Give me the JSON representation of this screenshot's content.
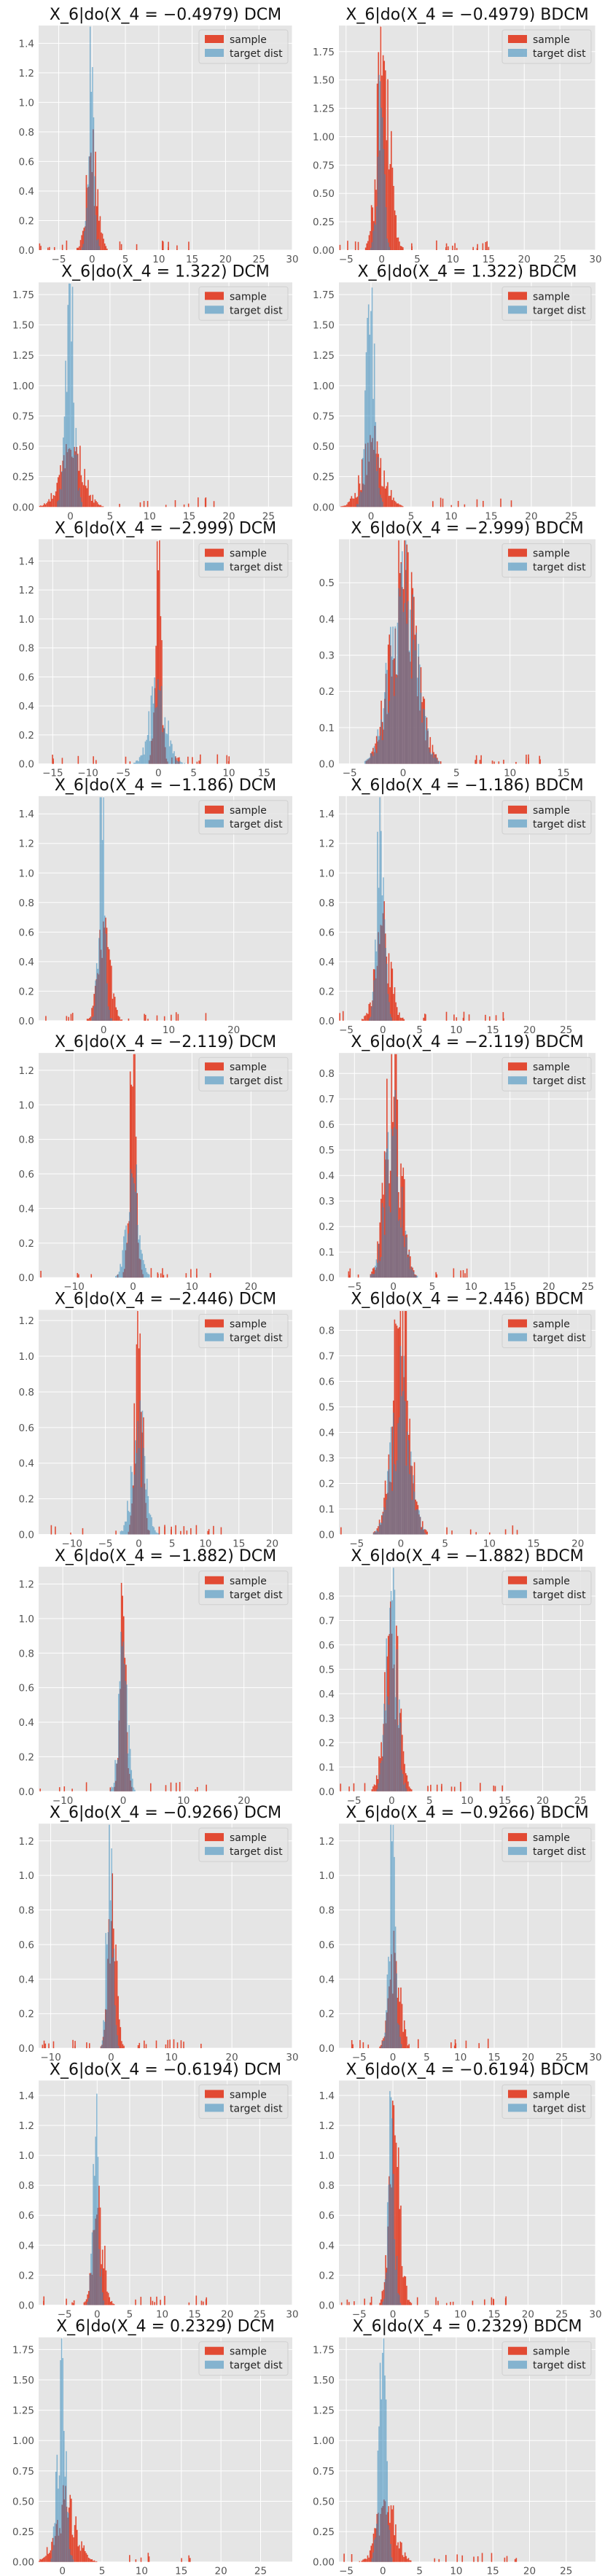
{
  "chart_data": [
    {
      "type": "histogram",
      "title": "X_6|do(X_4 = −0.4979) DCM",
      "legend": [
        "sample",
        "target dist"
      ],
      "legend_position": "top-right",
      "grid": true,
      "xlim": [
        -8,
        30
      ],
      "ylim": [
        0,
        1.52
      ],
      "xticks": [
        -5,
        0,
        5,
        10,
        15,
        20,
        25,
        30
      ],
      "yticks": [
        0,
        0.2,
        0.4,
        0.6,
        0.8,
        1.0,
        1.2,
        1.4
      ],
      "sample": {
        "center": 0.0,
        "width": 0.8,
        "peak": 0.72
      },
      "target": {
        "center": -0.2,
        "width": 0.45,
        "peak": 1.44
      }
    },
    {
      "type": "histogram",
      "title": "X_6|do(X_4 = −0.4979) BDCM",
      "legend": [
        "sample",
        "target dist"
      ],
      "legend_position": "top-right",
      "grid": true,
      "xlim": [
        -6,
        30
      ],
      "ylim": [
        0,
        1.98
      ],
      "xticks": [
        -5,
        0,
        5,
        10,
        15,
        20,
        25,
        30
      ],
      "yticks": [
        0,
        0.25,
        0.5,
        0.75,
        1.0,
        1.25,
        1.5,
        1.75
      ],
      "sample": {
        "center": 0.3,
        "width": 0.9,
        "peak": 1.9
      },
      "target": {
        "center": -0.2,
        "width": 0.45,
        "peak": 1.44
      }
    },
    {
      "type": "histogram",
      "title": "X_6|do(X_4 = 1.322) DCM",
      "legend": [
        "sample",
        "target dist"
      ],
      "legend_position": "top-right",
      "grid": true,
      "xlim": [
        -4,
        28
      ],
      "ylim": [
        0,
        1.85
      ],
      "xticks": [
        0,
        5,
        10,
        15,
        20,
        25
      ],
      "yticks": [
        0,
        0.25,
        0.5,
        0.75,
        1.0,
        1.25,
        1.5,
        1.75
      ],
      "sample": {
        "center": 0.2,
        "width": 1.4,
        "peak": 0.5
      },
      "target": {
        "center": -0.1,
        "width": 0.55,
        "peak": 1.72
      }
    },
    {
      "type": "histogram",
      "title": "X_6|do(X_4 = 1.322) BDCM",
      "legend": [
        "sample",
        "target dist"
      ],
      "legend_position": "top-right",
      "grid": true,
      "xlim": [
        -4,
        28
      ],
      "ylim": [
        0,
        1.85
      ],
      "xticks": [
        0,
        5,
        10,
        15,
        20,
        25
      ],
      "yticks": [
        0,
        0.25,
        0.5,
        0.75,
        1.0,
        1.25,
        1.5,
        1.75
      ],
      "sample": {
        "center": 0.2,
        "width": 1.3,
        "peak": 0.52
      },
      "target": {
        "center": -0.1,
        "width": 0.55,
        "peak": 1.72
      }
    },
    {
      "type": "histogram",
      "title": "X_6|do(X_4 = −2.999) DCM",
      "legend": [
        "sample",
        "target dist"
      ],
      "legend_position": "top-right",
      "grid": true,
      "xlim": [
        -17,
        19
      ],
      "ylim": [
        0,
        1.55
      ],
      "xticks": [
        -15,
        -10,
        -5,
        0,
        5,
        10,
        15
      ],
      "yticks": [
        0,
        0.2,
        0.4,
        0.6,
        0.8,
        1.0,
        1.2,
        1.4
      ],
      "sample": {
        "center": 0.0,
        "width": 0.45,
        "peak": 1.5
      },
      "target": {
        "center": 0.0,
        "width": 1.2,
        "peak": 0.52
      }
    },
    {
      "type": "histogram",
      "title": "X_6|do(X_4 = −2.999) BDCM",
      "legend": [
        "sample",
        "target dist"
      ],
      "legend_position": "top-right",
      "grid": true,
      "xlim": [
        -6,
        18
      ],
      "ylim": [
        0,
        0.62
      ],
      "xticks": [
        -5,
        0,
        5,
        10,
        15
      ],
      "yticks": [
        0,
        0.1,
        0.2,
        0.3,
        0.4,
        0.5
      ],
      "sample": {
        "center": 0.0,
        "width": 1.2,
        "peak": 0.55
      },
      "target": {
        "center": 0.0,
        "width": 1.2,
        "peak": 0.52
      }
    },
    {
      "type": "histogram",
      "title": "X_6|do(X_4 = −1.186) DCM",
      "legend": [
        "sample",
        "target dist"
      ],
      "legend_position": "top-right",
      "grid": true,
      "xlim": [
        -10,
        29
      ],
      "ylim": [
        0,
        1.52
      ],
      "xticks": [
        0,
        10,
        20
      ],
      "yticks": [
        0,
        0.2,
        0.4,
        0.6,
        0.8,
        1.0,
        1.2,
        1.4
      ],
      "sample": {
        "center": 0.1,
        "width": 0.9,
        "peak": 0.7
      },
      "target": {
        "center": -0.3,
        "width": 0.5,
        "peak": 1.42
      }
    },
    {
      "type": "histogram",
      "title": "X_6|do(X_4 = −1.186) BDCM",
      "legend": [
        "sample",
        "target dist"
      ],
      "legend_position": "top-right",
      "grid": true,
      "xlim": [
        -6,
        29
      ],
      "ylim": [
        0,
        1.52
      ],
      "xticks": [
        -5,
        0,
        5,
        10,
        15,
        20,
        25
      ],
      "yticks": [
        0,
        0.2,
        0.4,
        0.6,
        0.8,
        1.0,
        1.2,
        1.4
      ],
      "sample": {
        "center": 0.0,
        "width": 1.0,
        "peak": 0.62
      },
      "target": {
        "center": -0.3,
        "width": 0.5,
        "peak": 1.42
      }
    },
    {
      "type": "histogram",
      "title": "X_6|do(X_4 = −2.119) DCM",
      "legend": [
        "sample",
        "target dist"
      ],
      "legend_position": "top-right",
      "grid": true,
      "xlim": [
        -16,
        27
      ],
      "ylim": [
        0,
        1.3
      ],
      "xticks": [
        -10,
        0,
        10,
        20
      ],
      "yticks": [
        0,
        0.2,
        0.4,
        0.6,
        0.8,
        1.0,
        1.2
      ],
      "sample": {
        "center": 0.0,
        "width": 0.6,
        "peak": 1.25
      },
      "target": {
        "center": 0.0,
        "width": 1.0,
        "peak": 0.6
      }
    },
    {
      "type": "histogram",
      "title": "X_6|do(X_4 = −2.119) BDCM",
      "legend": [
        "sample",
        "target dist"
      ],
      "legend_position": "top-right",
      "grid": true,
      "xlim": [
        -7,
        26
      ],
      "ylim": [
        0,
        0.88
      ],
      "xticks": [
        -5,
        0,
        5,
        10,
        15,
        20,
        25
      ],
      "yticks": [
        0,
        0.1,
        0.2,
        0.3,
        0.4,
        0.5,
        0.6,
        0.7,
        0.8
      ],
      "sample": {
        "center": 0.0,
        "width": 1.0,
        "peak": 0.84
      },
      "target": {
        "center": 0.0,
        "width": 1.0,
        "peak": 0.6
      }
    },
    {
      "type": "histogram",
      "title": "X_6|do(X_4 = −2.446) DCM",
      "legend": [
        "sample",
        "target dist"
      ],
      "legend_position": "top-right",
      "grid": true,
      "xlim": [
        -15,
        23
      ],
      "ylim": [
        0,
        1.26
      ],
      "xticks": [
        -10,
        -5,
        0,
        5,
        10,
        15,
        20
      ],
      "yticks": [
        0,
        0.2,
        0.4,
        0.6,
        0.8,
        1.0,
        1.2
      ],
      "sample": {
        "center": 0.0,
        "width": 0.55,
        "peak": 1.22
      },
      "target": {
        "center": 0.0,
        "width": 1.0,
        "peak": 0.6
      }
    },
    {
      "type": "histogram",
      "title": "X_6|do(X_4 = −2.446) BDCM",
      "legend": [
        "sample",
        "target dist"
      ],
      "legend_position": "top-right",
      "grid": true,
      "xlim": [
        -7,
        22
      ],
      "ylim": [
        0,
        0.88
      ],
      "xticks": [
        -5,
        0,
        5,
        10,
        15,
        20
      ],
      "yticks": [
        0,
        0.1,
        0.2,
        0.3,
        0.4,
        0.5,
        0.6,
        0.7,
        0.8
      ],
      "sample": {
        "center": 0.0,
        "width": 1.0,
        "peak": 0.83
      },
      "target": {
        "center": 0.0,
        "width": 1.0,
        "peak": 0.6
      }
    },
    {
      "type": "histogram",
      "title": "X_6|do(X_4 = −1.882) DCM",
      "legend": [
        "sample",
        "target dist"
      ],
      "legend_position": "top-right",
      "grid": true,
      "xlim": [
        -14,
        28
      ],
      "ylim": [
        0,
        1.3
      ],
      "xticks": [
        -10,
        0,
        10,
        20
      ],
      "yticks": [
        0,
        0.2,
        0.4,
        0.6,
        0.8,
        1.0,
        1.2
      ],
      "sample": {
        "center": 0.0,
        "width": 0.5,
        "peak": 1.24
      },
      "target": {
        "center": 0.0,
        "width": 0.7,
        "peak": 0.82
      }
    },
    {
      "type": "histogram",
      "title": "X_6|do(X_4 = −1.882) BDCM",
      "legend": [
        "sample",
        "target dist"
      ],
      "legend_position": "top-right",
      "grid": true,
      "xlim": [
        -7,
        27
      ],
      "ylim": [
        0,
        0.92
      ],
      "xticks": [
        -5,
        0,
        5,
        10,
        15,
        20,
        25
      ],
      "yticks": [
        0,
        0.1,
        0.2,
        0.3,
        0.4,
        0.5,
        0.6,
        0.7,
        0.8
      ],
      "sample": {
        "center": 0.0,
        "width": 0.9,
        "peak": 0.7
      },
      "target": {
        "center": 0.0,
        "width": 0.7,
        "peak": 0.82
      }
    },
    {
      "type": "histogram",
      "title": "X_6|do(X_4 = −0.9266) DCM",
      "legend": [
        "sample",
        "target dist"
      ],
      "legend_position": "top-right",
      "grid": true,
      "xlim": [
        -12,
        30
      ],
      "ylim": [
        0,
        1.3
      ],
      "xticks": [
        -10,
        0,
        10,
        20,
        30
      ],
      "yticks": [
        0,
        0.2,
        0.4,
        0.6,
        0.8,
        1.0,
        1.2
      ],
      "sample": {
        "center": 0.2,
        "width": 0.7,
        "peak": 0.8
      },
      "target": {
        "center": -0.2,
        "width": 0.5,
        "peak": 1.22
      }
    },
    {
      "type": "histogram",
      "title": "X_6|do(X_4 = −0.9266) BDCM",
      "legend": [
        "sample",
        "target dist"
      ],
      "legend_position": "top-right",
      "grid": true,
      "xlim": [
        -8,
        30
      ],
      "ylim": [
        0,
        1.3
      ],
      "xticks": [
        -5,
        0,
        5,
        10,
        15,
        20,
        25,
        30
      ],
      "yticks": [
        0,
        0.2,
        0.4,
        0.6,
        0.8,
        1.0,
        1.2
      ],
      "sample": {
        "center": 0.3,
        "width": 0.8,
        "peak": 0.6
      },
      "target": {
        "center": -0.2,
        "width": 0.5,
        "peak": 1.22
      }
    },
    {
      "type": "histogram",
      "title": "X_6|do(X_4 = −0.6194) DCM",
      "legend": [
        "sample",
        "target dist"
      ],
      "legend_position": "top-right",
      "grid": true,
      "xlim": [
        -9,
        30
      ],
      "ylim": [
        0,
        1.5
      ],
      "xticks": [
        -5,
        0,
        5,
        10,
        15,
        20,
        25,
        30
      ],
      "yticks": [
        0,
        0.2,
        0.4,
        0.6,
        0.8,
        1.0,
        1.2,
        1.4
      ],
      "sample": {
        "center": 0.2,
        "width": 0.8,
        "peak": 0.7
      },
      "target": {
        "center": -0.2,
        "width": 0.45,
        "peak": 1.3
      }
    },
    {
      "type": "histogram",
      "title": "X_6|do(X_4 = −0.6194) BDCM",
      "legend": [
        "sample",
        "target dist"
      ],
      "legend_position": "top-right",
      "grid": true,
      "xlim": [
        -8,
        30
      ],
      "ylim": [
        0,
        1.5
      ],
      "xticks": [
        -5,
        0,
        5,
        10,
        15,
        20,
        25,
        30
      ],
      "yticks": [
        0,
        0.2,
        0.4,
        0.6,
        0.8,
        1.0,
        1.2,
        1.4
      ],
      "sample": {
        "center": 0.3,
        "width": 0.8,
        "peak": 1.2
      },
      "target": {
        "center": -0.2,
        "width": 0.45,
        "peak": 1.3
      }
    },
    {
      "type": "histogram",
      "title": "X_6|do(X_4 = 0.2329) DCM",
      "legend": [
        "sample",
        "target dist"
      ],
      "legend_position": "top-right",
      "grid": true,
      "xlim": [
        -3,
        29
      ],
      "ylim": [
        0,
        1.85
      ],
      "xticks": [
        0,
        5,
        10,
        15,
        20,
        25
      ],
      "yticks": [
        0,
        0.25,
        0.5,
        0.75,
        1.0,
        1.25,
        1.5,
        1.75
      ],
      "sample": {
        "center": 0.4,
        "width": 1.3,
        "peak": 0.5
      },
      "target": {
        "center": -0.1,
        "width": 0.5,
        "peak": 1.75
      }
    },
    {
      "type": "histogram",
      "title": "X_6|do(X_4 = 0.2329) BDCM",
      "legend": [
        "sample",
        "target dist"
      ],
      "legend_position": "top-right",
      "grid": true,
      "xlim": [
        -6,
        29
      ],
      "ylim": [
        0,
        1.85
      ],
      "xticks": [
        -5,
        0,
        5,
        10,
        15,
        20,
        25
      ],
      "yticks": [
        0,
        0.25,
        0.5,
        0.75,
        1.0,
        1.25,
        1.5,
        1.75
      ],
      "sample": {
        "center": 0.5,
        "width": 1.2,
        "peak": 0.55
      },
      "target": {
        "center": -0.1,
        "width": 0.5,
        "peak": 1.75
      }
    }
  ],
  "colors": {
    "sample": "#e24a33",
    "target": "#348abd",
    "axes_bg": "#e5e5e5",
    "grid": "#ffffff"
  }
}
